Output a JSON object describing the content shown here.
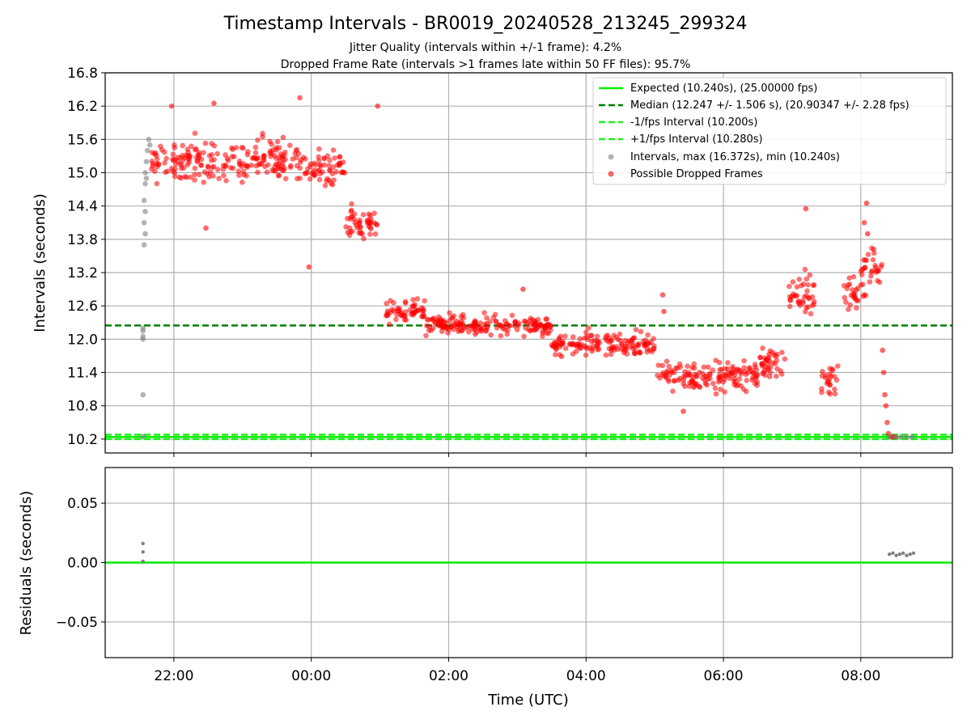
{
  "title": "Timestamp Intervals - BR0019_20240528_213245_299324",
  "subtitle_1": "Jitter Quality (intervals within +/-1 frame): 4.2%",
  "subtitle_2": "Dropped Frame Rate (intervals >1 frames late within 50 FF files): 95.7%",
  "colors": {
    "expected": "#00ee00",
    "median": "#008000",
    "fps_interval": "#22ee22",
    "intervals": "#808080",
    "dropped": "#ff0000",
    "grid": "#b0b0b0"
  },
  "chart_data": [
    {
      "type": "scatter",
      "xlabel": "",
      "ylabel": "Intervals (seconds)",
      "x_axis_type": "time_utc",
      "xlim": [
        "2024-05-28T21:00",
        "2024-05-29T09:20"
      ],
      "ylim": [
        9.95,
        16.8
      ],
      "x_ticks": [
        "22:00",
        "00:00",
        "02:00",
        "04:00",
        "06:00",
        "08:00"
      ],
      "x_tick_labels_shown": false,
      "y_ticks": [
        10.2,
        10.8,
        11.4,
        12.0,
        12.6,
        13.2,
        13.8,
        14.4,
        15.0,
        15.6,
        16.2,
        16.8
      ],
      "y_tick_labels": [
        "10.2",
        "10.8",
        "11.4",
        "12.0",
        "12.6",
        "13.2",
        "13.8",
        "14.4",
        "15.0",
        "15.6",
        "16.2",
        "16.8"
      ],
      "grid": true,
      "legend_position": "top-right",
      "reference_lines": [
        {
          "name": "Expected (10.240s), (25.00000 fps)",
          "y": 10.24,
          "style": "solid"
        },
        {
          "name": "Median (12.247 +/- 1.506 s), (20.90347 +/- 2.28 fps)",
          "y": 12.247,
          "style": "dashed"
        },
        {
          "name": "-1/fps Interval (10.200s)",
          "y": 10.2,
          "style": "dashed"
        },
        {
          "name": "+1/fps Interval (10.280s)",
          "y": 10.28,
          "style": "dashed"
        }
      ],
      "series": [
        {
          "name": "Intervals, max (16.372s), min (10.240s)",
          "points": [
            [
              "2024-05-28T21:33",
              12.2
            ],
            [
              "2024-05-28T21:33",
              12.05
            ],
            [
              "2024-05-28T21:33",
              12.0
            ],
            [
              "2024-05-28T21:33",
              12.15
            ],
            [
              "2024-05-28T21:33",
              11.0
            ],
            [
              "2024-05-28T21:33",
              10.25
            ],
            [
              "2024-05-28T21:34",
              13.7
            ],
            [
              "2024-05-28T21:34",
              14.1
            ],
            [
              "2024-05-28T21:34",
              14.5
            ],
            [
              "2024-05-28T21:35",
              14.8
            ],
            [
              "2024-05-28T21:35",
              15.0
            ],
            [
              "2024-05-28T21:36",
              15.2
            ],
            [
              "2024-05-28T21:37",
              15.4
            ],
            [
              "2024-05-28T21:38",
              15.6
            ],
            [
              "2024-05-28T21:39",
              15.5
            ],
            [
              "2024-05-28T21:36",
              14.9
            ],
            [
              "2024-05-28T21:35",
              14.3
            ],
            [
              "2024-05-28T21:35",
              13.9
            ],
            [
              "2024-05-29T08:25",
              10.24
            ],
            [
              "2024-05-29T08:30",
              10.24
            ],
            [
              "2024-05-29T08:35",
              10.24
            ],
            [
              "2024-05-29T08:40",
              10.24
            ],
            [
              "2024-05-29T08:45",
              10.24
            ]
          ]
        },
        {
          "name": "Possible Dropped Frames",
          "segments": [
            {
              "from": "2024-05-28T21:40",
              "to": "2024-05-28T23:55",
              "center": 15.2,
              "spread": 0.35
            },
            {
              "from": "2024-05-28T23:55",
              "to": "2024-05-29T00:30",
              "center": 15.1,
              "spread": 0.3
            },
            {
              "from": "2024-05-29T00:30",
              "to": "2024-05-29T01:00",
              "center": 14.1,
              "spread": 0.3
            },
            {
              "from": "2024-05-29T01:05",
              "to": "2024-05-29T01:40",
              "center": 12.5,
              "spread": 0.2
            },
            {
              "from": "2024-05-29T01:40",
              "to": "2024-05-29T03:30",
              "center": 12.25,
              "spread": 0.18
            },
            {
              "from": "2024-05-29T03:30",
              "to": "2024-05-29T05:00",
              "center": 11.9,
              "spread": 0.2
            },
            {
              "from": "2024-05-29T05:00",
              "to": "2024-05-29T06:30",
              "center": 11.35,
              "spread": 0.25
            },
            {
              "from": "2024-05-29T06:30",
              "to": "2024-05-29T06:55",
              "center": 11.6,
              "spread": 0.25
            },
            {
              "from": "2024-05-29T06:55",
              "to": "2024-05-29T07:20",
              "center": 12.8,
              "spread": 0.4
            },
            {
              "from": "2024-05-29T07:25",
              "to": "2024-05-29T07:40",
              "center": 11.3,
              "spread": 0.35
            },
            {
              "from": "2024-05-29T07:45",
              "to": "2024-05-29T08:00",
              "center": 12.8,
              "spread": 0.3
            },
            {
              "from": "2024-05-29T08:00",
              "to": "2024-05-29T08:20",
              "center": 13.2,
              "spread": 0.5
            }
          ],
          "points": [
            [
              "2024-05-28T21:58",
              16.2
            ],
            [
              "2024-05-28T22:35",
              16.25
            ],
            [
              "2024-05-28T23:50",
              16.35
            ],
            [
              "2024-05-29T00:58",
              16.2
            ],
            [
              "2024-05-28T23:58",
              13.3
            ],
            [
              "2024-05-28T22:28",
              14.0
            ],
            [
              "2024-05-29T03:05",
              12.9
            ],
            [
              "2024-05-29T05:07",
              12.8
            ],
            [
              "2024-05-29T05:08",
              12.5
            ],
            [
              "2024-05-29T05:25",
              10.7
            ],
            [
              "2024-05-29T07:12",
              14.35
            ],
            [
              "2024-05-29T08:05",
              14.45
            ],
            [
              "2024-05-29T08:03",
              14.1
            ],
            [
              "2024-05-29T08:06",
              13.9
            ],
            [
              "2024-05-29T08:19",
              11.8
            ],
            [
              "2024-05-29T08:20",
              11.4
            ],
            [
              "2024-05-29T08:21",
              11.0
            ],
            [
              "2024-05-29T08:22",
              10.8
            ],
            [
              "2024-05-29T08:23",
              10.5
            ],
            [
              "2024-05-29T08:24",
              10.3
            ],
            [
              "2024-05-29T08:26",
              10.24
            ],
            [
              "2024-05-29T08:28",
              10.24
            ],
            [
              "2024-05-29T08:30",
              10.24
            ]
          ]
        }
      ]
    },
    {
      "type": "scatter",
      "xlabel": "Time (UTC)",
      "ylabel": "Residuals (seconds)",
      "x_axis_type": "time_utc",
      "xlim": [
        "2024-05-28T21:00",
        "2024-05-29T09:20"
      ],
      "ylim": [
        -0.08,
        0.08
      ],
      "x_ticks": [
        "22:00",
        "00:00",
        "02:00",
        "04:00",
        "06:00",
        "08:00"
      ],
      "x_tick_labels": [
        "22:00",
        "00:00",
        "02:00",
        "04:00",
        "06:00",
        "08:00"
      ],
      "y_ticks": [
        -0.05,
        0.0,
        0.05
      ],
      "y_tick_labels": [
        "−0.05",
        "0.00",
        "0.05"
      ],
      "grid": true,
      "reference_lines": [
        {
          "y": 0.0,
          "style": "solid"
        }
      ],
      "series": [
        {
          "points": [
            [
              "2024-05-28T21:33",
              0.016
            ],
            [
              "2024-05-28T21:33",
              0.009
            ],
            [
              "2024-05-28T21:33",
              0.001
            ],
            [
              "2024-05-29T08:25",
              0.007
            ],
            [
              "2024-05-29T08:28",
              0.008
            ],
            [
              "2024-05-29T08:31",
              0.006
            ],
            [
              "2024-05-29T08:34",
              0.007
            ],
            [
              "2024-05-29T08:37",
              0.008
            ],
            [
              "2024-05-29T08:40",
              0.006
            ],
            [
              "2024-05-29T08:43",
              0.007
            ],
            [
              "2024-05-29T08:46",
              0.008
            ]
          ]
        }
      ]
    }
  ]
}
